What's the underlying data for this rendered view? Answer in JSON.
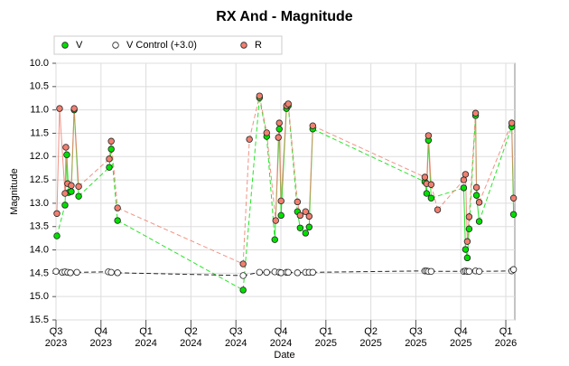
{
  "chart_data": {
    "type": "scatter-line",
    "title": "RX And - Magnitude",
    "xlabel": "Date",
    "ylabel": "Magnitude",
    "y_inverted": true,
    "grid": true,
    "legend": "top",
    "xlim": [
      2023.5,
      2026.05
    ],
    "xticks": [
      {
        "value": 2023.5,
        "label": "Q3 2023"
      },
      {
        "value": 2023.75,
        "label": "Q4 2023"
      },
      {
        "value": 2024.0,
        "label": "Q1 2024"
      },
      {
        "value": 2024.25,
        "label": "Q2 2024"
      },
      {
        "value": 2024.5,
        "label": "Q3 2024"
      },
      {
        "value": 2024.75,
        "label": "Q4 2024"
      },
      {
        "value": 2025.0,
        "label": "Q1 2025"
      },
      {
        "value": 2025.25,
        "label": "Q2 2025"
      },
      {
        "value": 2025.5,
        "label": "Q3 2025"
      },
      {
        "value": 2025.75,
        "label": "Q4 2025"
      },
      {
        "value": 2026.0,
        "label": "Q1 2026"
      }
    ],
    "ylim": [
      10.0,
      15.5
    ],
    "yticks": [
      {
        "value": 10,
        "label": "10.0"
      },
      10.5,
      {
        "value": 11,
        "label": "11.0"
      },
      11.5,
      {
        "value": 12,
        "label": "12.0"
      },
      12.5,
      {
        "value": 13,
        "label": "13.0"
      },
      13.5,
      {
        "value": 14,
        "label": "14.0"
      },
      14.5,
      {
        "value": 15,
        "label": "15.0"
      },
      15.5
    ],
    "series": [
      {
        "name": "V",
        "color": "#00e000",
        "linestyle": "auto",
        "x": [
          2023.505,
          2023.55,
          2023.56,
          2023.57,
          2023.585,
          2023.601,
          2023.626,
          2023.796,
          2023.807,
          2023.842,
          2024.54,
          2024.631,
          2024.671,
          2024.716,
          2024.741,
          2024.751,
          2024.781,
          2024.791,
          2024.842,
          2024.857,
          2024.887,
          2024.907,
          2024.927,
          2025.55,
          2025.56,
          2025.57,
          2025.585,
          2025.766,
          2025.776,
          2025.786,
          2025.796,
          2025.832,
          2025.837,
          2025.852,
          2026.033,
          2026.043
        ],
        "values": [
          13.7,
          13.04,
          11.96,
          12.77,
          12.75,
          11.0,
          12.85,
          12.23,
          11.84,
          13.37,
          14.86,
          10.74,
          11.57,
          13.78,
          11.41,
          13.26,
          10.97,
          10.91,
          13.18,
          13.53,
          13.64,
          13.51,
          11.41,
          12.54,
          12.79,
          11.65,
          12.89,
          12.67,
          13.99,
          14.17,
          13.55,
          11.12,
          12.83,
          13.39,
          11.36,
          13.24
        ]
      },
      {
        "name": "V Control (+3.0)",
        "color": "#ffffff",
        "linestyle": "dashed",
        "x": [
          2023.5,
          2023.535,
          2023.55,
          2023.565,
          2023.58,
          2023.616,
          2023.791,
          2023.807,
          2023.842,
          2024.54,
          2024.631,
          2024.671,
          2024.716,
          2024.741,
          2024.751,
          2024.781,
          2024.791,
          2024.842,
          2024.887,
          2024.907,
          2024.927,
          2025.55,
          2025.56,
          2025.57,
          2025.585,
          2025.766,
          2025.776,
          2025.786,
          2025.796,
          2025.832,
          2025.852,
          2026.033,
          2026.043
        ],
        "values": [
          14.46,
          14.48,
          14.47,
          14.48,
          14.49,
          14.48,
          14.47,
          14.48,
          14.49,
          14.55,
          14.48,
          14.48,
          14.47,
          14.48,
          14.49,
          14.48,
          14.48,
          14.49,
          14.48,
          14.48,
          14.48,
          14.45,
          14.45,
          14.46,
          14.46,
          14.46,
          14.45,
          14.46,
          14.46,
          14.45,
          14.46,
          14.45,
          14.42
        ]
      },
      {
        "name": "R",
        "color": "#f08070",
        "linestyle": "auto",
        "x": [
          2023.505,
          2023.52,
          2023.55,
          2023.555,
          2023.565,
          2023.585,
          2023.601,
          2023.626,
          2023.796,
          2023.807,
          2023.842,
          2024.54,
          2024.575,
          2024.631,
          2024.671,
          2024.721,
          2024.736,
          2024.741,
          2024.751,
          2024.781,
          2024.791,
          2024.842,
          2024.857,
          2024.887,
          2024.907,
          2024.927,
          2025.55,
          2025.56,
          2025.57,
          2025.585,
          2025.621,
          2025.766,
          2025.776,
          2025.786,
          2025.796,
          2025.832,
          2025.837,
          2025.852,
          2026.033,
          2026.043
        ],
        "values": [
          13.22,
          10.97,
          12.79,
          11.8,
          12.58,
          12.62,
          10.97,
          12.64,
          12.05,
          11.67,
          13.1,
          14.3,
          11.63,
          10.7,
          11.49,
          13.37,
          11.59,
          11.28,
          12.95,
          10.91,
          10.87,
          12.97,
          13.26,
          13.18,
          13.28,
          11.34,
          12.44,
          12.58,
          11.55,
          12.6,
          13.14,
          12.5,
          12.38,
          13.82,
          13.29,
          11.07,
          12.66,
          12.98,
          11.28,
          12.89
        ]
      }
    ]
  }
}
